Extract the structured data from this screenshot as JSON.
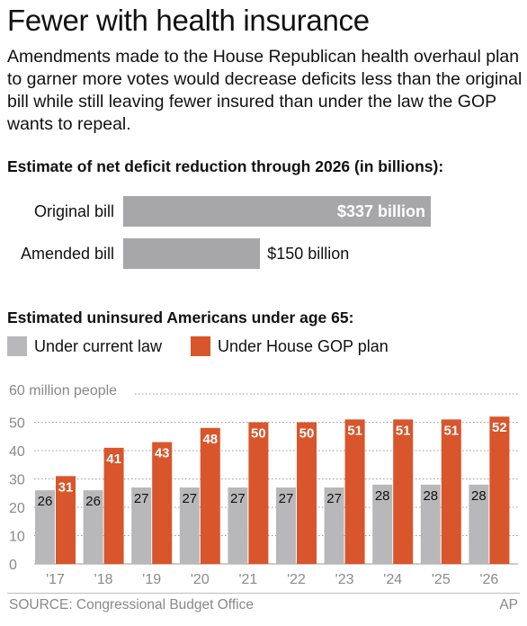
{
  "title": "Fewer with health insurance",
  "intro": "Amendments made to the House Republican health overhaul plan to garner more votes would decrease deficits less than the original bill while still leaving fewer insured than under the law the GOP wants to repeal.",
  "section1": {
    "heading": "Estimate of net deficit reduction through 2026 (in billions):",
    "rows": [
      {
        "label": "Original bill",
        "value": 337,
        "value_label": "$337 billion"
      },
      {
        "label": "Amended bill",
        "value": 150,
        "value_label": "$150 billion"
      }
    ]
  },
  "section2": {
    "heading": "Estimated uninsured Americans under age 65:",
    "legend": [
      {
        "label": "Under current law",
        "color": "#b8b8ba"
      },
      {
        "label": "Under House GOP plan",
        "color": "#d9552b"
      }
    ],
    "unit_label": "60 million people"
  },
  "colors": {
    "deficit_bar": "#a7a7a9",
    "current_law": "#b8b8ba",
    "gop_plan": "#d9552b",
    "grid": "#9a9a9a",
    "axis_text": "#8a8a8a"
  },
  "chart_data": [
    {
      "type": "bar",
      "orientation": "horizontal",
      "title": "Estimate of net deficit reduction through 2026 (in billions):",
      "categories": [
        "Original bill",
        "Amended bill"
      ],
      "values": [
        337,
        150
      ],
      "data_labels": [
        "$337 billion",
        "$150 billion"
      ],
      "units": "billions of dollars"
    },
    {
      "type": "bar",
      "title": "Estimated uninsured Americans under age 65:",
      "categories": [
        "'17",
        "'18",
        "'19",
        "'20",
        "'21",
        "'22",
        "'23",
        "'24",
        "'25",
        "'26"
      ],
      "series": [
        {
          "name": "Under current law",
          "values": [
            26,
            26,
            27,
            27,
            27,
            27,
            27,
            28,
            28,
            28
          ]
        },
        {
          "name": "Under House GOP plan",
          "values": [
            31,
            41,
            43,
            48,
            50,
            50,
            51,
            51,
            51,
            52
          ]
        }
      ],
      "ylabel": "60 million people",
      "ylim": [
        0,
        60
      ],
      "yticks": [
        0,
        10,
        20,
        30,
        40,
        50
      ],
      "grid": true,
      "legend": "top-left"
    }
  ],
  "footer": {
    "source": "SOURCE: Congressional Budget Office",
    "credit": "AP"
  }
}
